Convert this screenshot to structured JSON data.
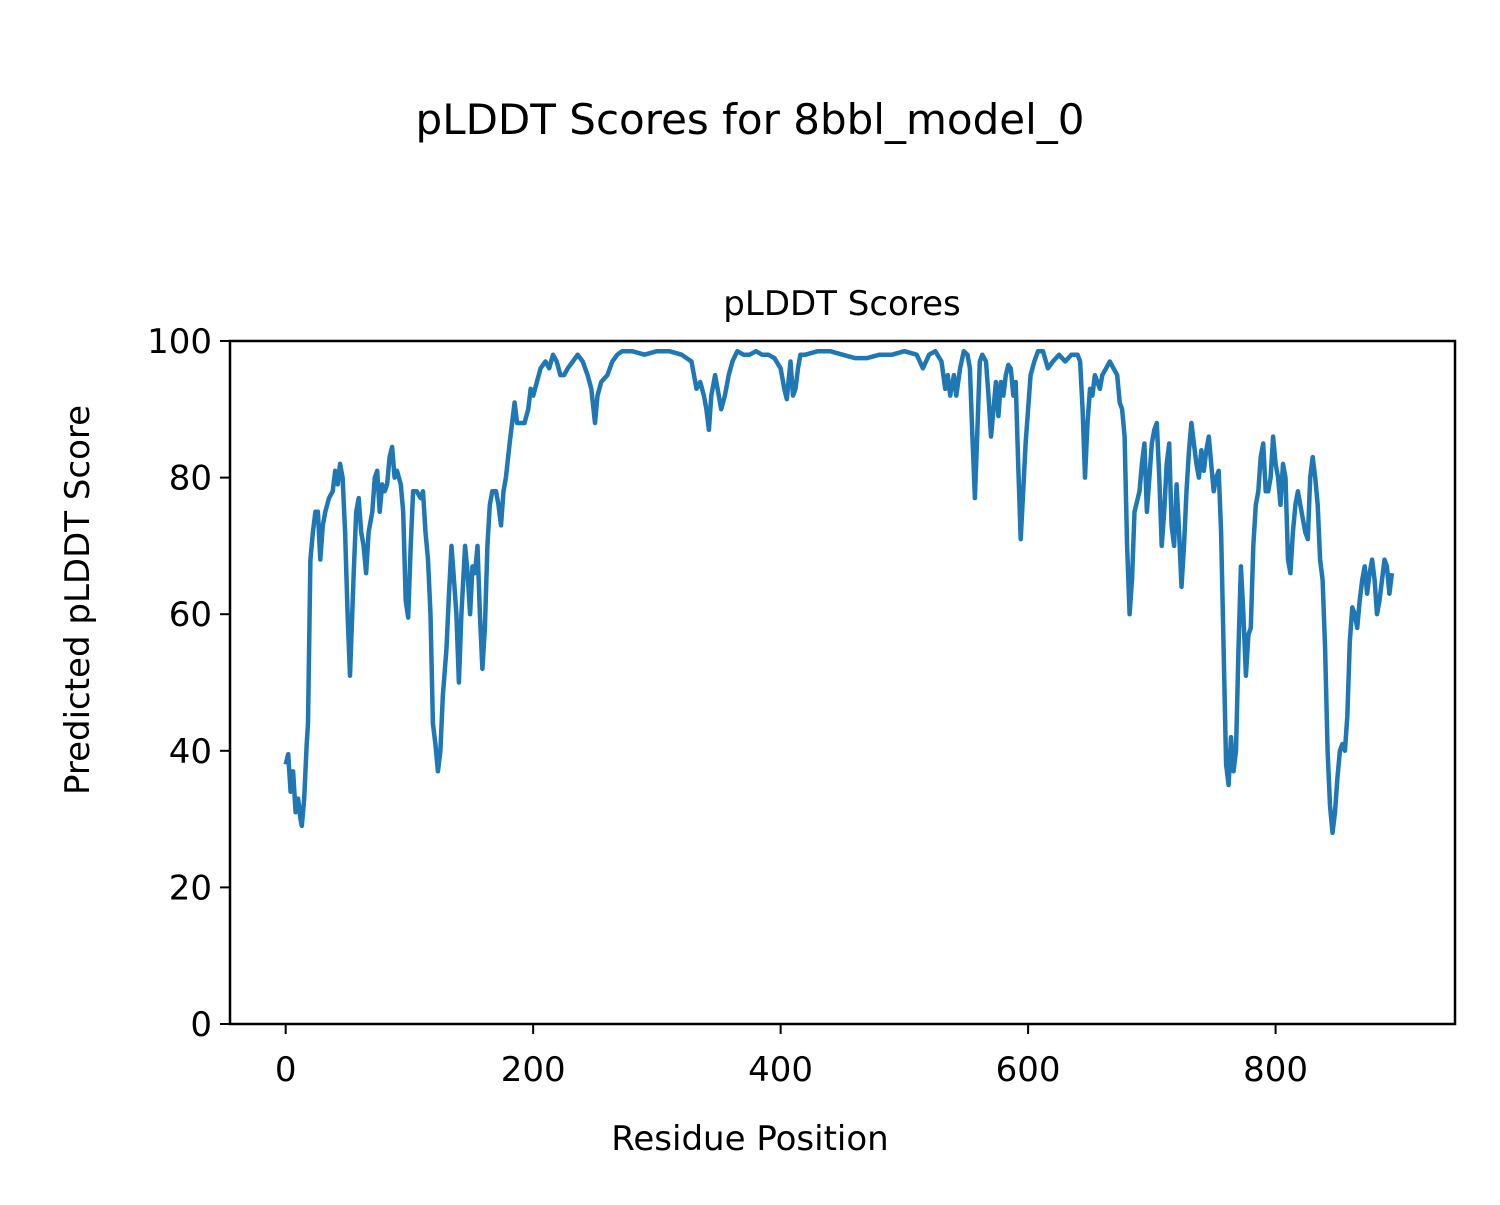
{
  "chart_data": {
    "type": "line",
    "title": "pLDDT Scores for 8bbl_model_0",
    "subtitle": "pLDDT Scores",
    "xlabel": "Residue Position",
    "ylabel": "Predicted pLDDT Score",
    "xlim": [
      -45,
      945
    ],
    "ylim": [
      0,
      100
    ],
    "xticks": [
      0,
      200,
      400,
      600,
      800
    ],
    "yticks": [
      0,
      20,
      40,
      60,
      80,
      100
    ],
    "grid": false,
    "line_color": "#1f77b4",
    "series": [
      {
        "name": "pLDDT",
        "points": [
          [
            0,
            38
          ],
          [
            2,
            39.5
          ],
          [
            4,
            34
          ],
          [
            6,
            37
          ],
          [
            8,
            31
          ],
          [
            10,
            33
          ],
          [
            12,
            30
          ],
          [
            13,
            29
          ],
          [
            15,
            33
          ],
          [
            17,
            41
          ],
          [
            18,
            44
          ],
          [
            20,
            68
          ],
          [
            22,
            72
          ],
          [
            24,
            75
          ],
          [
            26,
            75
          ],
          [
            28,
            68
          ],
          [
            30,
            73
          ],
          [
            32,
            75
          ],
          [
            35,
            77
          ],
          [
            38,
            78
          ],
          [
            40,
            81
          ],
          [
            42,
            79
          ],
          [
            44,
            82
          ],
          [
            46,
            80
          ],
          [
            48,
            72
          ],
          [
            50,
            60
          ],
          [
            52,
            51
          ],
          [
            55,
            66
          ],
          [
            57,
            75
          ],
          [
            59,
            77
          ],
          [
            61,
            72
          ],
          [
            63,
            70
          ],
          [
            65,
            66
          ],
          [
            67,
            72
          ],
          [
            70,
            75
          ],
          [
            72,
            80
          ],
          [
            74,
            81
          ],
          [
            76,
            75
          ],
          [
            78,
            79
          ],
          [
            80,
            78
          ],
          [
            82,
            79
          ],
          [
            84,
            83
          ],
          [
            86,
            84.5
          ],
          [
            88,
            80
          ],
          [
            90,
            81
          ],
          [
            93,
            79
          ],
          [
            95,
            75
          ],
          [
            97,
            62
          ],
          [
            99,
            59.5
          ],
          [
            101,
            70
          ],
          [
            103,
            78
          ],
          [
            106,
            78
          ],
          [
            109,
            77
          ],
          [
            111,
            78
          ],
          [
            113,
            72
          ],
          [
            115,
            68
          ],
          [
            117,
            60
          ],
          [
            119,
            44
          ],
          [
            121,
            41
          ],
          [
            123,
            37
          ],
          [
            125,
            40
          ],
          [
            127,
            48
          ],
          [
            130,
            55
          ],
          [
            132,
            63
          ],
          [
            134,
            70
          ],
          [
            136,
            65
          ],
          [
            138,
            60
          ],
          [
            140,
            50
          ],
          [
            142,
            60
          ],
          [
            145,
            70
          ],
          [
            147,
            66
          ],
          [
            149,
            60
          ],
          [
            151,
            67
          ],
          [
            153,
            66
          ],
          [
            155,
            70
          ],
          [
            157,
            60
          ],
          [
            159,
            52
          ],
          [
            161,
            58
          ],
          [
            163,
            70
          ],
          [
            165,
            76
          ],
          [
            167,
            78
          ],
          [
            170,
            78
          ],
          [
            172,
            76
          ],
          [
            174,
            73
          ],
          [
            176,
            78
          ],
          [
            178,
            80
          ],
          [
            181,
            85
          ],
          [
            183,
            88
          ],
          [
            185,
            91
          ],
          [
            187,
            88
          ],
          [
            190,
            88
          ],
          [
            193,
            88
          ],
          [
            196,
            90
          ],
          [
            198,
            93
          ],
          [
            200,
            92
          ],
          [
            203,
            94
          ],
          [
            206,
            96
          ],
          [
            210,
            97
          ],
          [
            213,
            96
          ],
          [
            216,
            98
          ],
          [
            219,
            97
          ],
          [
            222,
            95
          ],
          [
            225,
            95
          ],
          [
            228,
            96
          ],
          [
            232,
            97
          ],
          [
            236,
            98
          ],
          [
            240,
            97
          ],
          [
            244,
            95
          ],
          [
            247,
            93
          ],
          [
            250,
            88
          ],
          [
            252,
            92
          ],
          [
            255,
            94
          ],
          [
            260,
            95
          ],
          [
            264,
            97
          ],
          [
            268,
            98
          ],
          [
            272,
            98.5
          ],
          [
            280,
            98.5
          ],
          [
            290,
            98
          ],
          [
            300,
            98.5
          ],
          [
            310,
            98.5
          ],
          [
            320,
            98
          ],
          [
            328,
            97
          ],
          [
            332,
            93
          ],
          [
            335,
            94
          ],
          [
            338,
            92
          ],
          [
            340,
            90
          ],
          [
            342,
            87
          ],
          [
            344,
            92
          ],
          [
            347,
            95
          ],
          [
            350,
            92
          ],
          [
            352,
            90
          ],
          [
            355,
            92
          ],
          [
            358,
            95
          ],
          [
            361,
            97
          ],
          [
            365,
            98.5
          ],
          [
            370,
            98
          ],
          [
            375,
            98
          ],
          [
            380,
            98.5
          ],
          [
            385,
            98
          ],
          [
            390,
            98
          ],
          [
            395,
            97.5
          ],
          [
            400,
            96
          ],
          [
            403,
            93
          ],
          [
            405,
            91.5
          ],
          [
            408,
            97
          ],
          [
            410,
            92
          ],
          [
            412,
            93
          ],
          [
            414,
            96
          ],
          [
            416,
            98
          ],
          [
            420,
            98
          ],
          [
            430,
            98.5
          ],
          [
            440,
            98.5
          ],
          [
            450,
            98
          ],
          [
            460,
            97.5
          ],
          [
            470,
            97.5
          ],
          [
            480,
            98
          ],
          [
            490,
            98
          ],
          [
            500,
            98.5
          ],
          [
            510,
            98
          ],
          [
            515,
            96
          ],
          [
            520,
            98
          ],
          [
            525,
            98.5
          ],
          [
            530,
            97
          ],
          [
            533,
            93
          ],
          [
            535,
            95
          ],
          [
            537,
            92
          ],
          [
            540,
            95
          ],
          [
            542,
            92
          ],
          [
            545,
            96
          ],
          [
            548,
            98.5
          ],
          [
            551,
            98
          ],
          [
            553,
            96
          ],
          [
            555,
            86
          ],
          [
            557,
            77
          ],
          [
            559,
            87
          ],
          [
            561,
            97
          ],
          [
            563,
            98
          ],
          [
            566,
            97
          ],
          [
            568,
            92
          ],
          [
            570,
            86
          ],
          [
            572,
            90
          ],
          [
            574,
            94
          ],
          [
            576,
            89
          ],
          [
            578,
            94
          ],
          [
            580,
            92
          ],
          [
            582,
            95
          ],
          [
            584,
            96.5
          ],
          [
            586,
            96
          ],
          [
            588,
            92
          ],
          [
            590,
            94
          ],
          [
            592,
            82
          ],
          [
            594,
            71
          ],
          [
            596,
            78
          ],
          [
            598,
            85
          ],
          [
            600,
            90
          ],
          [
            602,
            95
          ],
          [
            605,
            97
          ],
          [
            608,
            98.5
          ],
          [
            612,
            98.5
          ],
          [
            616,
            96
          ],
          [
            620,
            97
          ],
          [
            625,
            98
          ],
          [
            630,
            97
          ],
          [
            635,
            98
          ],
          [
            640,
            98
          ],
          [
            642,
            97
          ],
          [
            644,
            90
          ],
          [
            646,
            80
          ],
          [
            648,
            88
          ],
          [
            650,
            93
          ],
          [
            652,
            92
          ],
          [
            654,
            95
          ],
          [
            656,
            94
          ],
          [
            658,
            93
          ],
          [
            660,
            95
          ],
          [
            663,
            96
          ],
          [
            666,
            97
          ],
          [
            669,
            96
          ],
          [
            672,
            95
          ],
          [
            674,
            91
          ],
          [
            676,
            90
          ],
          [
            678,
            86
          ],
          [
            680,
            70
          ],
          [
            682,
            60
          ],
          [
            684,
            65
          ],
          [
            686,
            75
          ],
          [
            690,
            78
          ],
          [
            692,
            82
          ],
          [
            694,
            85
          ],
          [
            696,
            75
          ],
          [
            698,
            80
          ],
          [
            700,
            85
          ],
          [
            702,
            87
          ],
          [
            704,
            88
          ],
          [
            706,
            80
          ],
          [
            708,
            70
          ],
          [
            710,
            75
          ],
          [
            712,
            82
          ],
          [
            714,
            85
          ],
          [
            716,
            73
          ],
          [
            718,
            70
          ],
          [
            720,
            79
          ],
          [
            722,
            72
          ],
          [
            724,
            64
          ],
          [
            726,
            70
          ],
          [
            728,
            78
          ],
          [
            730,
            84
          ],
          [
            732,
            88
          ],
          [
            734,
            85
          ],
          [
            736,
            82
          ],
          [
            738,
            80
          ],
          [
            740,
            84
          ],
          [
            742,
            81
          ],
          [
            744,
            84
          ],
          [
            746,
            86
          ],
          [
            748,
            82
          ],
          [
            750,
            78
          ],
          [
            752,
            80
          ],
          [
            754,
            81
          ],
          [
            756,
            72
          ],
          [
            758,
            55
          ],
          [
            760,
            38
          ],
          [
            762,
            35
          ],
          [
            764,
            42
          ],
          [
            766,
            37
          ],
          [
            768,
            40
          ],
          [
            770,
            55
          ],
          [
            772,
            67
          ],
          [
            774,
            60
          ],
          [
            776,
            51
          ],
          [
            778,
            57
          ],
          [
            780,
            58
          ],
          [
            782,
            70
          ],
          [
            784,
            76
          ],
          [
            786,
            78
          ],
          [
            788,
            83
          ],
          [
            790,
            85
          ],
          [
            792,
            78
          ],
          [
            794,
            78
          ],
          [
            796,
            80
          ],
          [
            798,
            86
          ],
          [
            800,
            82
          ],
          [
            802,
            80
          ],
          [
            804,
            76
          ],
          [
            806,
            82
          ],
          [
            808,
            80
          ],
          [
            810,
            68
          ],
          [
            812,
            66
          ],
          [
            814,
            72
          ],
          [
            816,
            76
          ],
          [
            818,
            78
          ],
          [
            820,
            76
          ],
          [
            822,
            74
          ],
          [
            824,
            72
          ],
          [
            826,
            71
          ],
          [
            828,
            80
          ],
          [
            830,
            83
          ],
          [
            832,
            80
          ],
          [
            834,
            76
          ],
          [
            836,
            68
          ],
          [
            838,
            65
          ],
          [
            840,
            55
          ],
          [
            842,
            40
          ],
          [
            844,
            32
          ],
          [
            846,
            28
          ],
          [
            848,
            31
          ],
          [
            850,
            36
          ],
          [
            852,
            40
          ],
          [
            854,
            41
          ],
          [
            856,
            40
          ],
          [
            858,
            45
          ],
          [
            860,
            56
          ],
          [
            862,
            61
          ],
          [
            864,
            60
          ],
          [
            866,
            58
          ],
          [
            868,
            62
          ],
          [
            870,
            65
          ],
          [
            872,
            67
          ],
          [
            874,
            63
          ],
          [
            876,
            66
          ],
          [
            878,
            68
          ],
          [
            880,
            65
          ],
          [
            882,
            60
          ],
          [
            884,
            62
          ],
          [
            886,
            65
          ],
          [
            888,
            68
          ],
          [
            890,
            67
          ],
          [
            892,
            63
          ],
          [
            894,
            66
          ]
        ]
      }
    ]
  }
}
